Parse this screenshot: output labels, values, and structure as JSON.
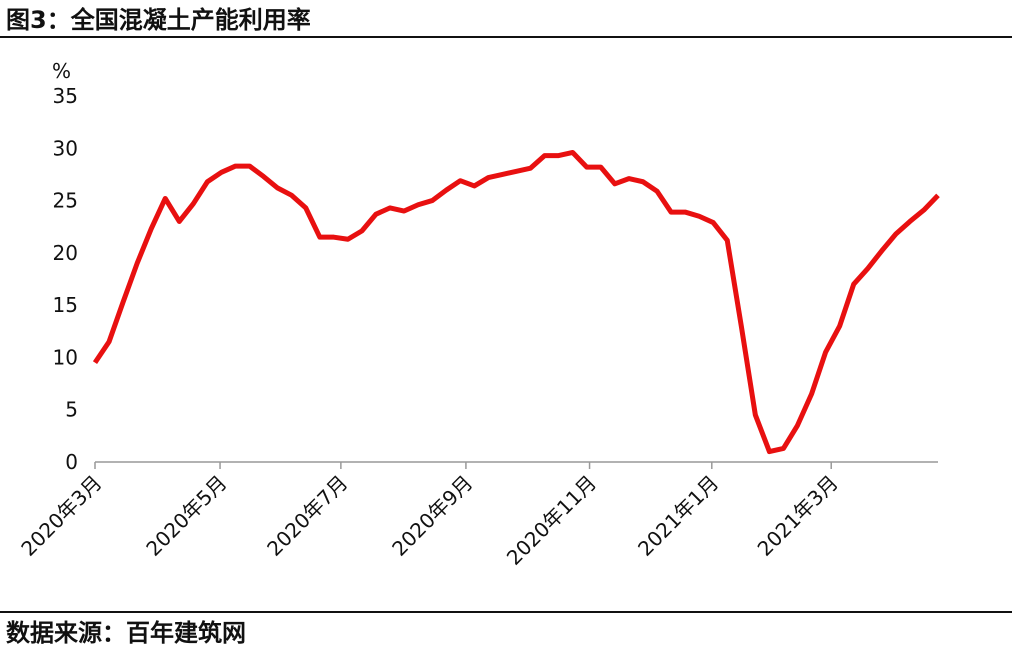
{
  "chart_data": {
    "type": "line",
    "title": "图3：全国混凝土产能利用率",
    "y_unit": "%",
    "source": "数据来源：百年建筑网",
    "x": [
      0,
      1,
      2,
      3,
      4,
      5,
      6,
      7,
      8,
      9,
      10,
      11,
      12,
      13,
      14,
      15,
      16,
      17,
      18,
      19,
      20,
      21,
      22,
      23,
      24,
      25,
      26,
      27,
      28,
      29,
      30,
      31,
      32,
      33,
      34,
      35,
      36,
      37,
      38,
      39,
      40,
      41,
      42,
      43,
      44,
      45,
      46,
      47,
      48,
      49,
      50,
      51,
      52,
      53,
      54,
      55,
      56,
      57,
      58,
      59,
      60
    ],
    "series": [
      {
        "name": "全国混凝土产能利用率",
        "color": "#e81010",
        "values": [
          9.5,
          11.5,
          15.3,
          19.0,
          22.3,
          25.2,
          23.0,
          24.7,
          26.8,
          27.7,
          28.3,
          28.3,
          27.3,
          26.2,
          25.5,
          24.3,
          21.5,
          21.5,
          21.3,
          22.1,
          23.7,
          24.3,
          24.0,
          24.6,
          25.0,
          26.0,
          26.9,
          26.4,
          27.2,
          27.5,
          27.8,
          28.1,
          29.3,
          29.3,
          29.6,
          28.2,
          28.2,
          26.6,
          27.1,
          26.8,
          25.9,
          23.9,
          23.9,
          23.5,
          22.9,
          21.2,
          13.0,
          4.5,
          1.0,
          1.3,
          3.5,
          6.5,
          10.5,
          13.0,
          17.0,
          18.5,
          20.2,
          21.8,
          23.0,
          24.1,
          25.5
        ]
      }
    ],
    "xlim": [
      0,
      60
    ],
    "xticks": [
      {
        "value": 0,
        "label": "2020年3月"
      },
      {
        "value": 8.9,
        "label": "2020年5月"
      },
      {
        "value": 17.5,
        "label": "2020年7月"
      },
      {
        "value": 26.4,
        "label": "2020年9月"
      },
      {
        "value": 35.2,
        "label": "2020年11月"
      },
      {
        "value": 43.9,
        "label": "2021年1月"
      },
      {
        "value": 52.4,
        "label": "2021年3月"
      }
    ],
    "ylim": [
      0,
      35
    ],
    "yticks": [
      0,
      5,
      10,
      15,
      20,
      25,
      30,
      35
    ]
  }
}
